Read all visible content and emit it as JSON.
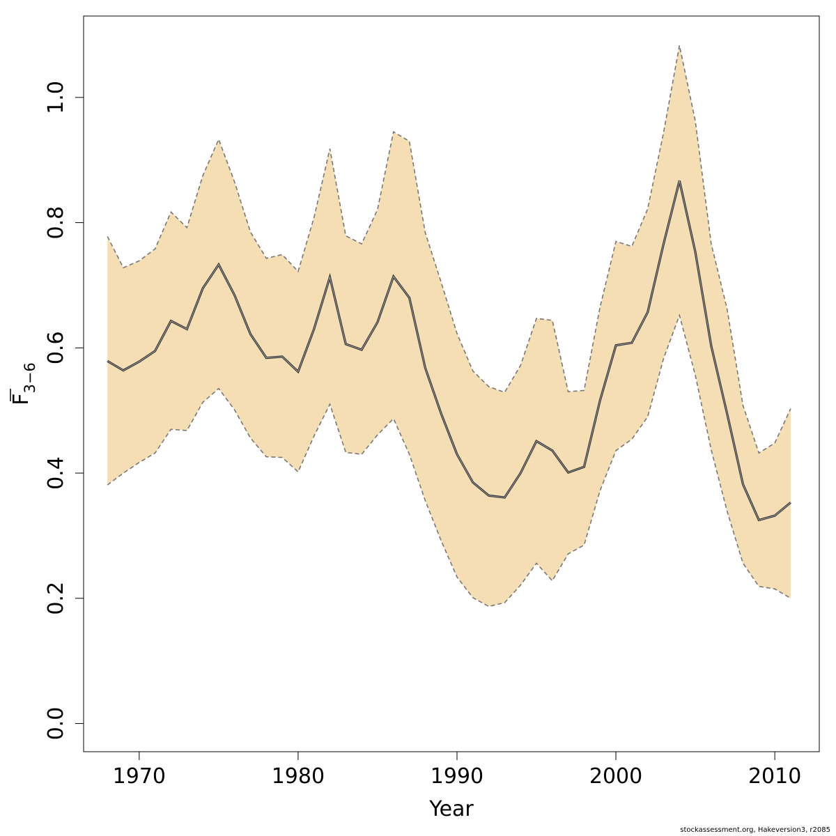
{
  "chart_data": {
    "type": "area",
    "xlabel": "Year",
    "ylabel": {
      "base": "F",
      "subscript": "3−6"
    },
    "xlim": [
      1966.5,
      2012.8
    ],
    "ylim": [
      -0.045,
      1.13
    ],
    "xticks": [
      1970,
      1980,
      1990,
      2000,
      2010
    ],
    "xtick_labels": [
      "1970",
      "1980",
      "1990",
      "2000",
      "2010"
    ],
    "yticks": [
      0.0,
      0.2,
      0.4,
      0.6,
      0.8,
      1.0
    ],
    "ytick_labels": [
      "0.0",
      "0.2",
      "0.4",
      "0.6",
      "0.8",
      "1.0"
    ],
    "grid": false,
    "colors": {
      "band_fill": "#f5deb3",
      "band_edge": "#777777",
      "line": "#333333"
    },
    "x": [
      1968,
      1969,
      1970,
      1971,
      1972,
      1973,
      1974,
      1975,
      1976,
      1977,
      1978,
      1979,
      1980,
      1981,
      1982,
      1983,
      1984,
      1985,
      1986,
      1987,
      1988,
      1989,
      1990,
      1991,
      1992,
      1993,
      1994,
      1995,
      1996,
      1997,
      1998,
      1999,
      2000,
      2001,
      2002,
      2003,
      2004,
      2005,
      2006,
      2007,
      2008,
      2009,
      2010,
      2011
    ],
    "series": [
      {
        "role": "upper",
        "values": [
          0.778,
          0.728,
          0.739,
          0.758,
          0.817,
          0.792,
          0.875,
          0.933,
          0.865,
          0.785,
          0.743,
          0.749,
          0.722,
          0.808,
          0.918,
          0.779,
          0.766,
          0.821,
          0.945,
          0.93,
          0.784,
          0.705,
          0.623,
          0.563,
          0.538,
          0.529,
          0.572,
          0.647,
          0.644,
          0.53,
          0.532,
          0.665,
          0.77,
          0.762,
          0.822,
          0.944,
          1.083,
          0.962,
          0.766,
          0.662,
          0.508,
          0.432,
          0.448,
          0.503
        ]
      },
      {
        "role": "estimate",
        "values": [
          0.579,
          0.564,
          0.578,
          0.595,
          0.643,
          0.63,
          0.695,
          0.733,
          0.684,
          0.622,
          0.584,
          0.586,
          0.562,
          0.63,
          0.713,
          0.606,
          0.597,
          0.641,
          0.714,
          0.68,
          0.568,
          0.495,
          0.43,
          0.385,
          0.364,
          0.361,
          0.4,
          0.451,
          0.436,
          0.401,
          0.41,
          0.516,
          0.604,
          0.608,
          0.657,
          0.766,
          0.867,
          0.753,
          0.603,
          0.495,
          0.382,
          0.325,
          0.332,
          0.353
        ]
      },
      {
        "role": "lower",
        "values": [
          0.381,
          0.4,
          0.417,
          0.432,
          0.47,
          0.468,
          0.513,
          0.535,
          0.501,
          0.456,
          0.426,
          0.425,
          0.402,
          0.459,
          0.51,
          0.433,
          0.43,
          0.461,
          0.487,
          0.43,
          0.356,
          0.292,
          0.234,
          0.201,
          0.187,
          0.193,
          0.221,
          0.256,
          0.228,
          0.271,
          0.285,
          0.372,
          0.436,
          0.454,
          0.49,
          0.583,
          0.652,
          0.556,
          0.437,
          0.339,
          0.256,
          0.219,
          0.215,
          0.2
        ]
      }
    ]
  },
  "credit": "stockassessment.org, Hakeversion3, r2085"
}
